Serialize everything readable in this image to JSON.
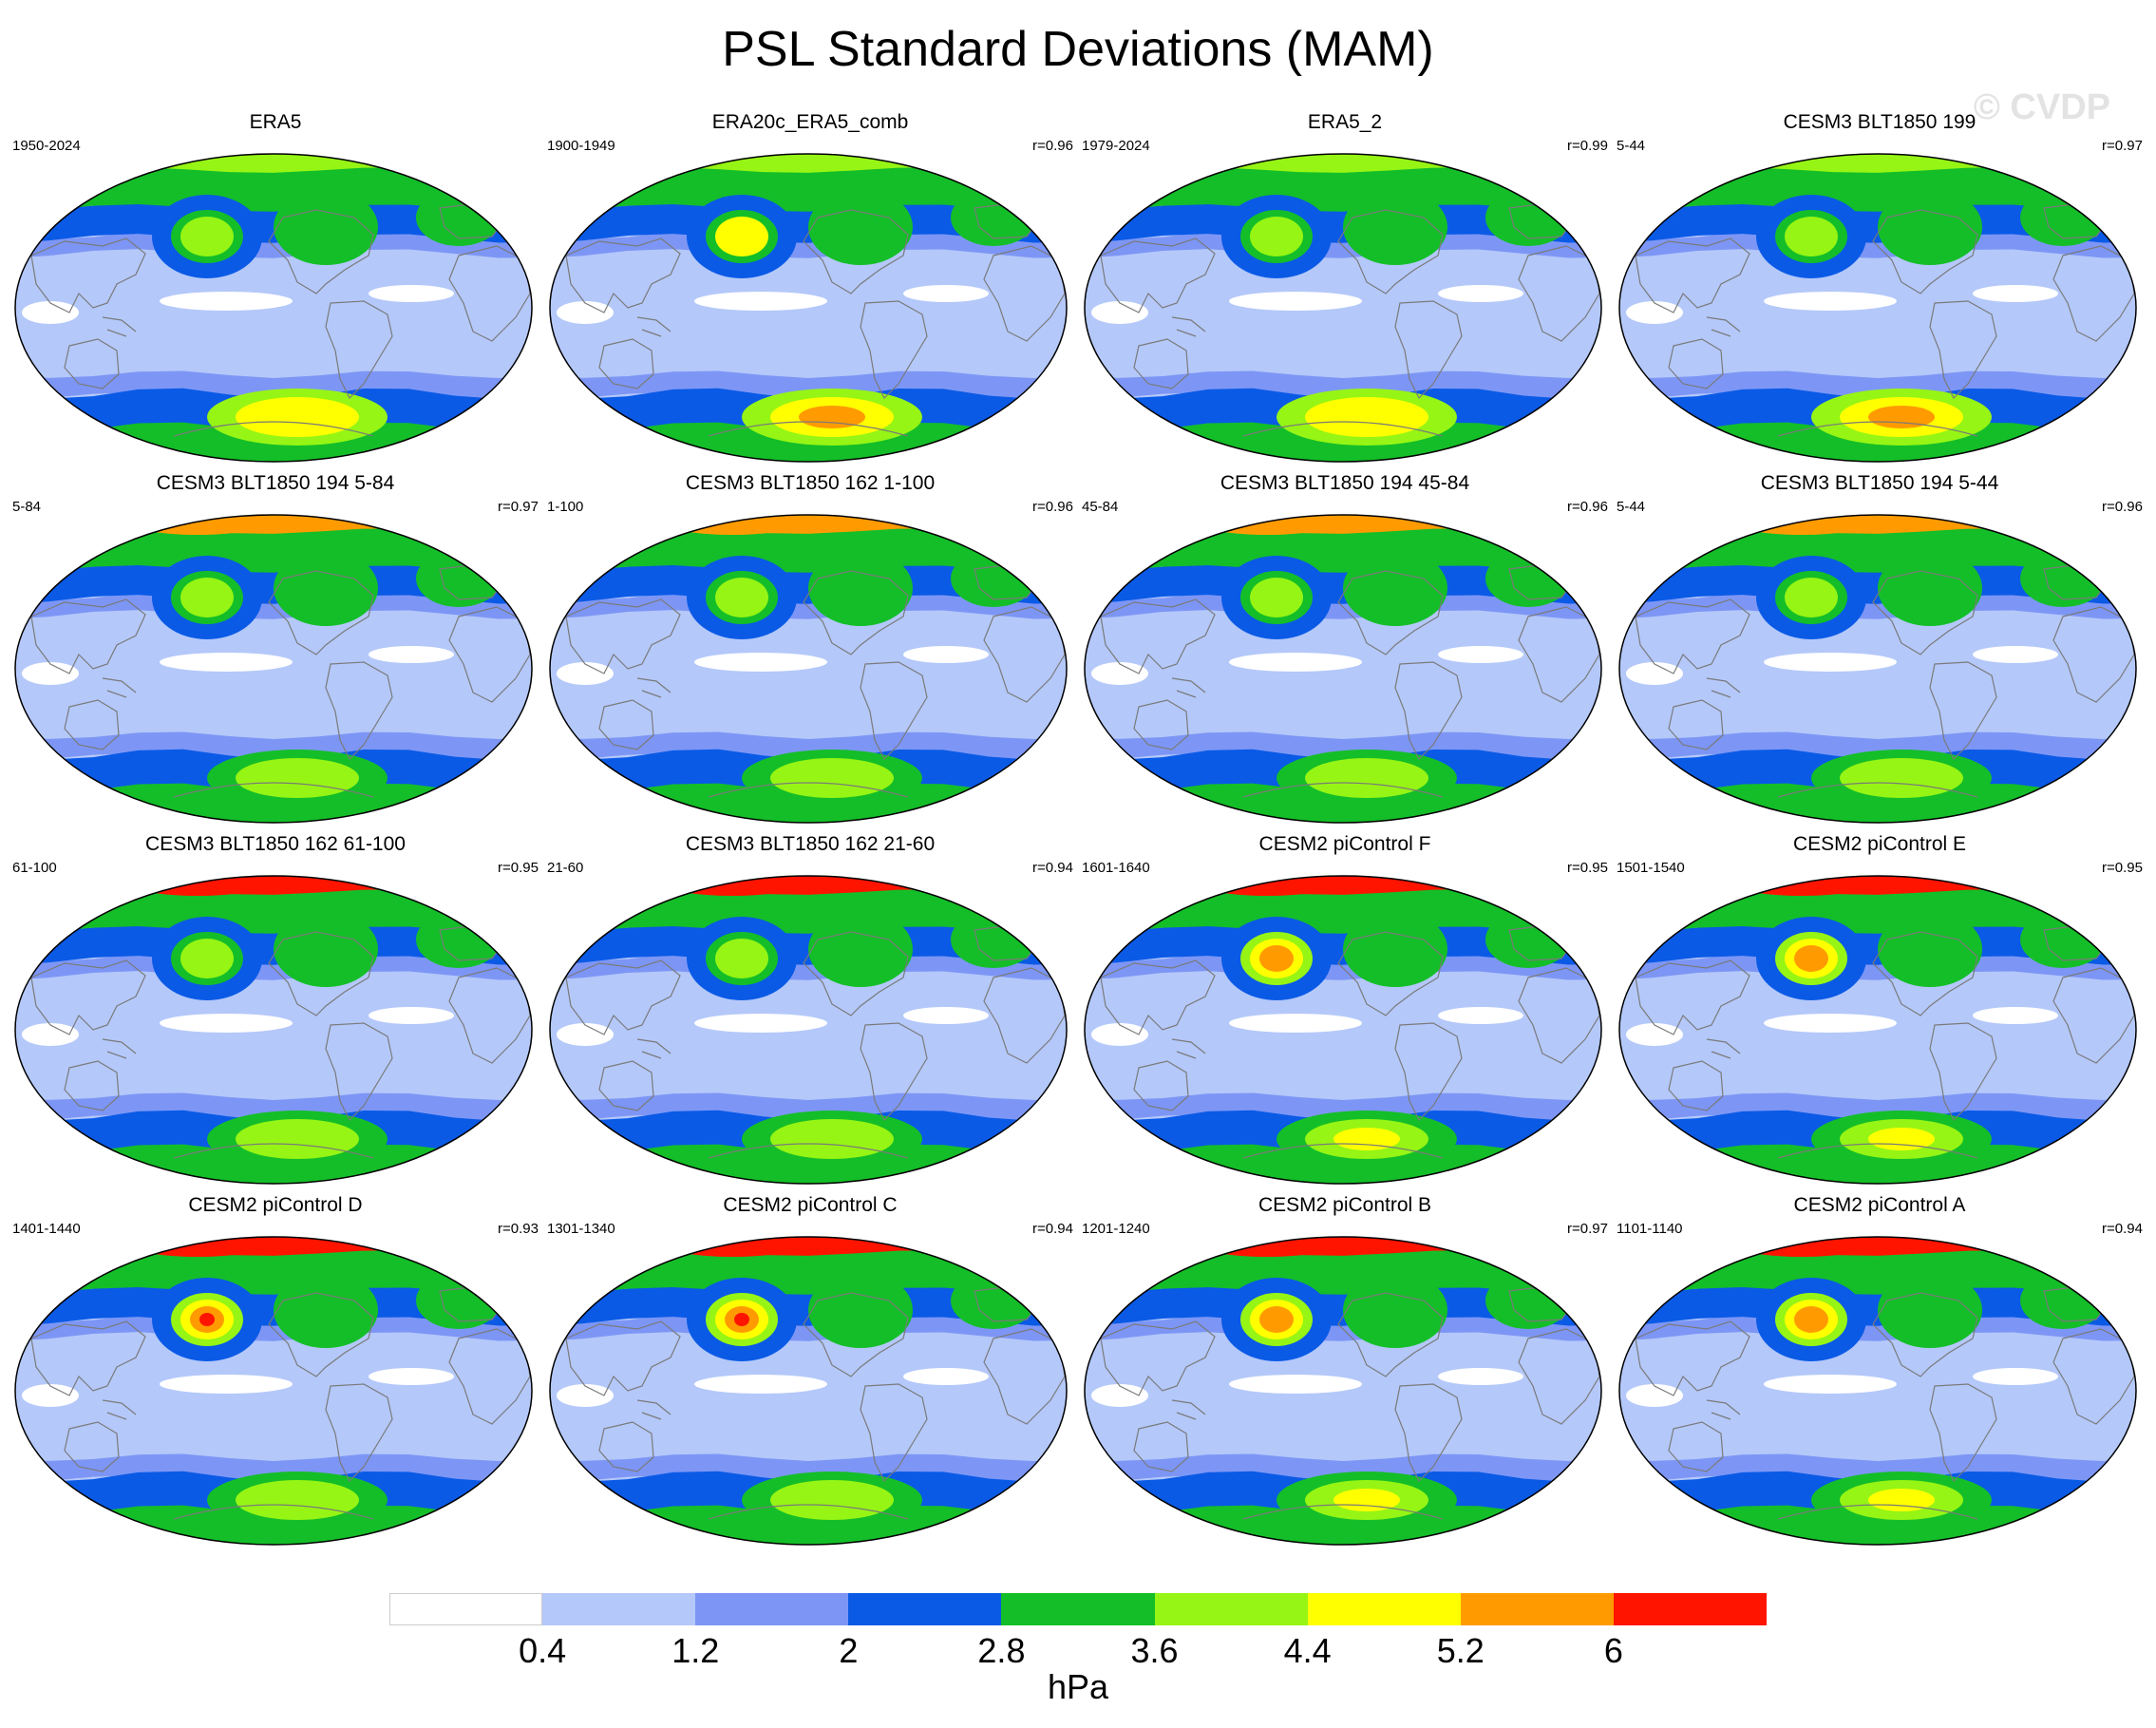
{
  "title": "PSL Standard Deviations (MAM)",
  "watermark": "© CVDP",
  "colors": {
    "bins": [
      "#ffffff",
      "#b4c8fa",
      "#7d96f5",
      "#0a5ae6",
      "#14be28",
      "#96f514",
      "#ffff00",
      "#ff9b00",
      "#ff1400"
    ],
    "coast": "#7a7a7a",
    "border": "#000000"
  },
  "colorbar": {
    "ticks": [
      "0.4",
      "1.2",
      "2",
      "2.8",
      "3.6",
      "4.4",
      "5.2",
      "6"
    ],
    "units": "hPa"
  },
  "panels": [
    {
      "title": "ERA5",
      "years": "1950-2024",
      "r": "",
      "pattern": "A"
    },
    {
      "title": "ERA20c_ERA5_comb",
      "years": "1900-1949",
      "r": "r=0.96",
      "pattern": "B"
    },
    {
      "title": "ERA5_2",
      "years": "1979-2024",
      "r": "r=0.99",
      "pattern": "A"
    },
    {
      "title": "CESM3 BLT1850 199",
      "years": "5-44",
      "r": "r=0.97",
      "pattern": "C"
    },
    {
      "title": "CESM3 BLT1850 194 5-84",
      "years": "5-84",
      "r": "r=0.97",
      "pattern": "D"
    },
    {
      "title": "CESM3 BLT1850 162 1-100",
      "years": "1-100",
      "r": "r=0.96",
      "pattern": "D"
    },
    {
      "title": "CESM3 BLT1850 194 45-84",
      "years": "45-84",
      "r": "r=0.96",
      "pattern": "D"
    },
    {
      "title": "CESM3 BLT1850 194 5-44",
      "years": "5-44",
      "r": "r=0.96",
      "pattern": "D"
    },
    {
      "title": "CESM3 BLT1850 162 61-100",
      "years": "61-100",
      "r": "r=0.95",
      "pattern": "E"
    },
    {
      "title": "CESM3 BLT1850 162 21-60",
      "years": "21-60",
      "r": "r=0.94",
      "pattern": "E"
    },
    {
      "title": "CESM2 piControl F",
      "years": "1601-1640",
      "r": "r=0.95",
      "pattern": "F"
    },
    {
      "title": "CESM2 piControl E",
      "years": "1501-1540",
      "r": "r=0.95",
      "pattern": "F"
    },
    {
      "title": "CESM2 piControl D",
      "years": "1401-1440",
      "r": "r=0.93",
      "pattern": "G"
    },
    {
      "title": "CESM2 piControl C",
      "years": "1301-1340",
      "r": "r=0.94",
      "pattern": "G"
    },
    {
      "title": "CESM2 piControl B",
      "years": "1201-1240",
      "r": "r=0.97",
      "pattern": "F"
    },
    {
      "title": "CESM2 piControl A",
      "years": "1101-1140",
      "r": "r=0.94",
      "pattern": "F"
    }
  ]
}
